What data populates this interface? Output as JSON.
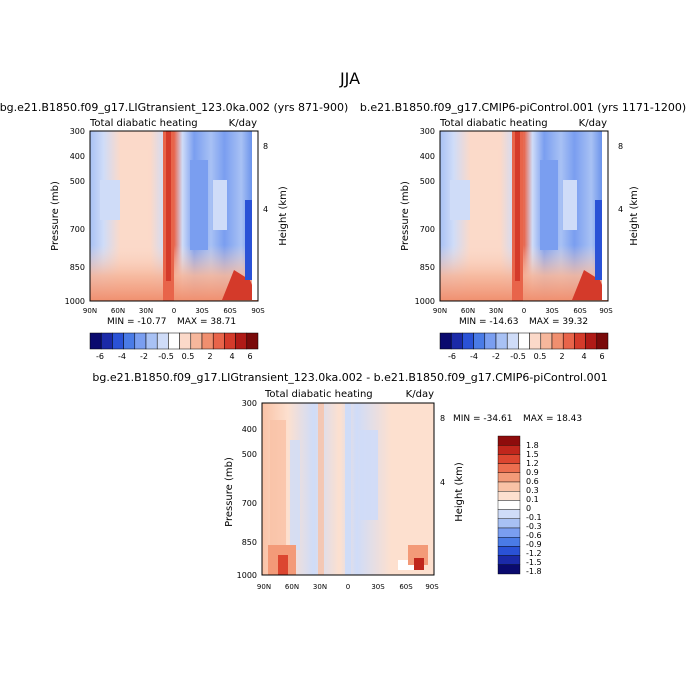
{
  "figure": {
    "title": "JJA"
  },
  "colors": {
    "panel_scale": [
      "#0a0a6e",
      "#1b2aa8",
      "#2a52d6",
      "#4a7be6",
      "#7a9ef0",
      "#a8c1f4",
      "#cfdcf8",
      "#ffffff",
      "#fbd9c9",
      "#f6b79c",
      "#f08f6f",
      "#e8644a",
      "#d43a2a",
      "#b01a16",
      "#7a0a0a"
    ],
    "diff_scale": [
      "#0a0a6e",
      "#1b2aa8",
      "#2a52d6",
      "#4a7be6",
      "#7a9ef0",
      "#a8c1f4",
      "#cfdcf8",
      "#ffffff",
      "#fde0cf",
      "#f9c2a6",
      "#f39a78",
      "#ec6e4f",
      "#dc4630",
      "#c0261c",
      "#8e0c0c"
    ]
  },
  "chart_data": [
    {
      "type": "heatmap",
      "title": "bg.e21.B1850.f09_g17.LIGtransient_123.0ka.002 (yrs 871-900)",
      "left_label": "Total diabatic heating",
      "units": "K/day",
      "ylabel": "Pressure (mb)",
      "y2label": "Height (km)",
      "x_ticks": [
        "90N",
        "60N",
        "30N",
        "0",
        "30S",
        "60S",
        "90S"
      ],
      "y_ticks": [
        "300",
        "400",
        "500",
        "700",
        "850",
        "1000"
      ],
      "y_ticks_values": [
        300,
        400,
        500,
        700,
        850,
        1000
      ],
      "y2_ticks": [
        "8",
        "4"
      ],
      "x_range": [
        90,
        -90
      ],
      "y_range": [
        1000,
        300
      ],
      "min": "MIN = -10.77",
      "max": "MAX =  38.71",
      "colorbar_labels": [
        "-6",
        "-4",
        "-2",
        "-0.5",
        "0.5",
        "2",
        "4",
        "6"
      ]
    },
    {
      "type": "heatmap",
      "title": "b.e21.B1850.f09_g17.CMIP6-piControl.001 (yrs 1171-1200)",
      "left_label": "Total diabatic heating",
      "units": "K/day",
      "ylabel": "Pressure (mb)",
      "y2label": "Height (km)",
      "x_ticks": [
        "90N",
        "60N",
        "30N",
        "0",
        "30S",
        "60S",
        "90S"
      ],
      "y_ticks": [
        "300",
        "400",
        "500",
        "700",
        "850",
        "1000"
      ],
      "y_ticks_values": [
        300,
        400,
        500,
        700,
        850,
        1000
      ],
      "y2_ticks": [
        "8",
        "4"
      ],
      "x_range": [
        90,
        -90
      ],
      "y_range": [
        1000,
        300
      ],
      "min": "MIN = -14.63",
      "max": "MAX =  39.32",
      "colorbar_labels": [
        "-6",
        "-4",
        "-2",
        "-0.5",
        "0.5",
        "2",
        "4",
        "6"
      ]
    },
    {
      "type": "heatmap",
      "title": "bg.e21.B1850.f09_g17.LIGtransient_123.0ka.002 - b.e21.B1850.f09_g17.CMIP6-piControl.001",
      "left_label": "Total diabatic heating",
      "units": "K/day",
      "ylabel": "Pressure (mb)",
      "y2label": "Height (km)",
      "x_ticks": [
        "90N",
        "60N",
        "30N",
        "0",
        "30S",
        "60S",
        "90S"
      ],
      "y_ticks": [
        "300",
        "400",
        "500",
        "700",
        "850",
        "1000"
      ],
      "y_ticks_values": [
        300,
        400,
        500,
        700,
        850,
        1000
      ],
      "y2_ticks": [
        "8",
        "4"
      ],
      "x_range": [
        90,
        -90
      ],
      "y_range": [
        1000,
        300
      ],
      "min": "MIN = -34.61",
      "max": "MAX =  18.43",
      "colorbar_labels": [
        "1.8",
        "1.5",
        "1.2",
        "0.9",
        "0.6",
        "0.3",
        "0.1",
        "0",
        "-0.1",
        "-0.3",
        "-0.6",
        "-0.9",
        "-1.2",
        "-1.5",
        "-1.8"
      ]
    }
  ]
}
